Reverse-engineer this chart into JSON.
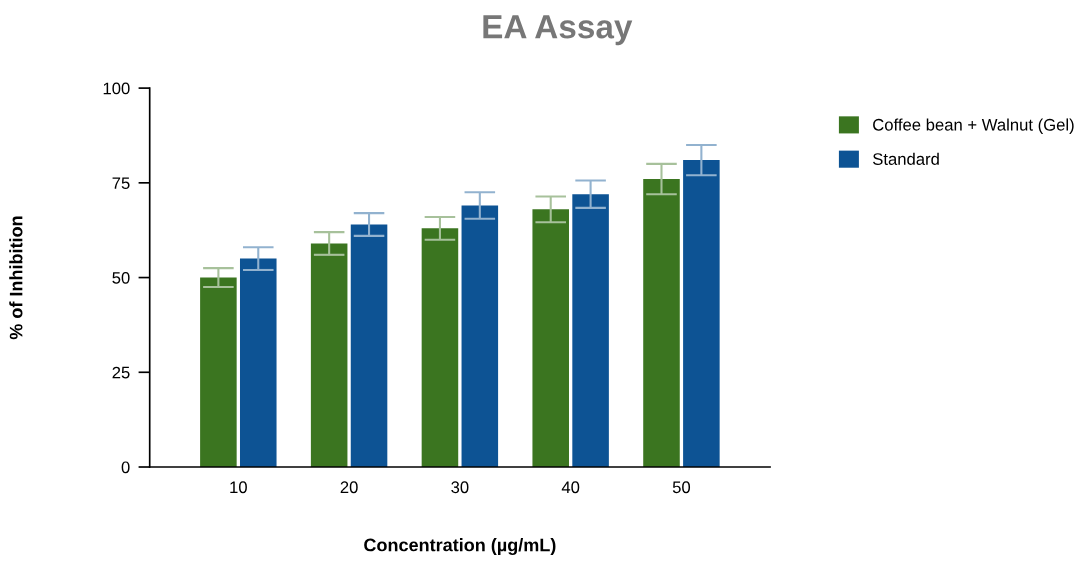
{
  "chart_data": {
    "type": "bar",
    "title": "EA Assay",
    "xlabel": "Concentration (µg/mL)",
    "ylabel": "% of Inhibition",
    "categories": [
      "10",
      "20",
      "30",
      "40",
      "50"
    ],
    "series": [
      {
        "name": "Coffee bean + Walnut (Gel)",
        "color": "#3b7520",
        "values": [
          50,
          59,
          63,
          68,
          76
        ],
        "errors": [
          2.5,
          3,
          3,
          3.4,
          4
        ]
      },
      {
        "name": "Standard",
        "color": "#0d5394",
        "values": [
          55,
          64,
          69,
          72,
          81
        ],
        "errors": [
          3,
          3,
          3.5,
          3.6,
          4
        ]
      }
    ],
    "ylim": [
      0,
      100
    ],
    "yticks": [
      0,
      25,
      50,
      75,
      100
    ],
    "grid": false,
    "legend": "top right"
  }
}
